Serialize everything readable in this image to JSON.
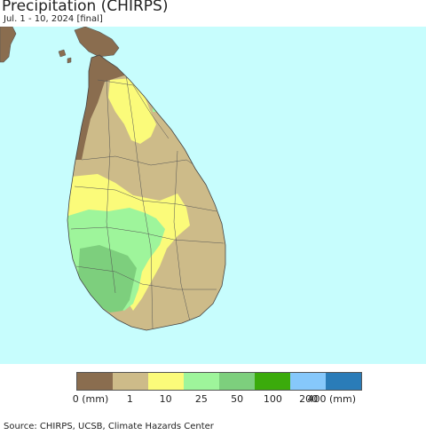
{
  "title": "Precipitation (CHIRPS)",
  "subtitle": "Jul. 1 - 10, 2024 [final]",
  "source": "Source: CHIRPS, UCSB, Climate Hazards Center",
  "colors": {
    "ocean": "#c7fdfd",
    "boundary": "#555555"
  },
  "legend": {
    "bins": [
      {
        "color": "#8a6d4f"
      },
      {
        "color": "#cdbb89"
      },
      {
        "color": "#fbfb7a"
      },
      {
        "color": "#9ef59b"
      },
      {
        "color": "#7dcf7d"
      },
      {
        "color": "#3bab0b"
      },
      {
        "color": "#86c8fb"
      },
      {
        "color": "#2a7cb8"
      }
    ],
    "labels": [
      "0 (mm)",
      "1",
      "10",
      "25",
      "50",
      "100",
      "200",
      "400 (mm)"
    ]
  },
  "map": {
    "region": "Sri Lanka",
    "legend_color_classes_present": [
      "0-1 mm",
      "1-10 mm",
      "10-25 mm",
      "25-50 mm",
      "50-100 mm"
    ]
  }
}
